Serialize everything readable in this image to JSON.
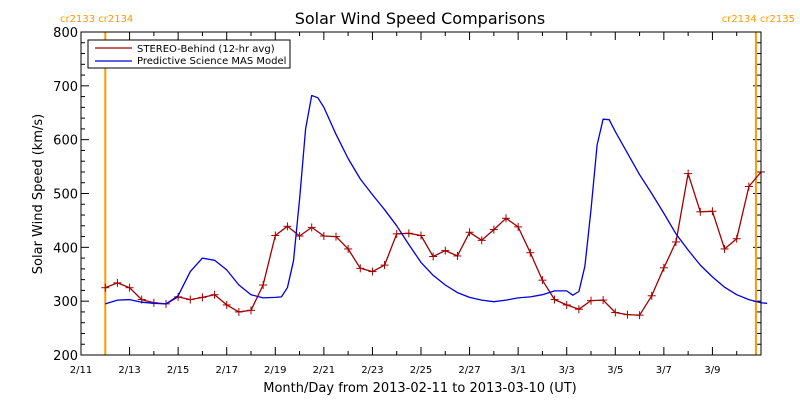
{
  "chart_data": {
    "type": "line",
    "title": "Solar Wind Speed Comparisons",
    "xlabel": "Month/Day from 2013-02-11 to 2013-03-10 (UT)",
    "ylabel": "Solar Wind Speed (km/s)",
    "x_unit": "date",
    "xlim": [
      "2013-02-11",
      "2013-03-10"
    ],
    "ylim": [
      200,
      800
    ],
    "y_ticks": [
      200,
      300,
      400,
      500,
      600,
      700,
      800
    ],
    "x_tick_labels": [
      "2/11",
      "2/13",
      "2/15",
      "2/17",
      "2/19",
      "2/21",
      "2/23",
      "2/25",
      "2/27",
      "3/1",
      "3/3",
      "3/5",
      "3/7",
      "3/9"
    ],
    "legend_position": "top-left",
    "grid": false,
    "carrington_rotation_markers": [
      {
        "x": "2013-02-12T00:00",
        "labels": [
          "cr2133",
          "cr2134"
        ],
        "label_align": "left",
        "color": "#ff9900"
      },
      {
        "x": "2013-03-10T19:00",
        "labels": [
          "cr2134",
          "cr2135"
        ],
        "label_align": "right",
        "color": "#ff9900"
      }
    ],
    "series": [
      {
        "name": "STEREO-Behind (12-hr avg)",
        "color": "#a00000",
        "marker": "plus",
        "points": [
          [
            "2013-02-12T00:00",
            325
          ],
          [
            "2013-02-12T12:00",
            334
          ],
          [
            "2013-02-13T00:00",
            325
          ],
          [
            "2013-02-13T12:00",
            303
          ],
          [
            "2013-02-14T00:00",
            297
          ],
          [
            "2013-02-14T12:00",
            295
          ],
          [
            "2013-02-15T00:00",
            308
          ],
          [
            "2013-02-15T12:00",
            303
          ],
          [
            "2013-02-16T00:00",
            307
          ],
          [
            "2013-02-16T12:00",
            312
          ],
          [
            "2013-02-17T00:00",
            293
          ],
          [
            "2013-02-17T12:00",
            280
          ],
          [
            "2013-02-18T00:00",
            283
          ],
          [
            "2013-02-18T12:00",
            330
          ],
          [
            "2013-02-19T00:00",
            422
          ],
          [
            "2013-02-19T12:00",
            439
          ],
          [
            "2013-02-20T00:00",
            421
          ],
          [
            "2013-02-20T12:00",
            437
          ],
          [
            "2013-02-21T00:00",
            421
          ],
          [
            "2013-02-21T12:00",
            420
          ],
          [
            "2013-02-22T00:00",
            397
          ],
          [
            "2013-02-22T12:00",
            361
          ],
          [
            "2013-02-23T00:00",
            355
          ],
          [
            "2013-02-23T12:00",
            367
          ],
          [
            "2013-02-24T00:00",
            425
          ],
          [
            "2013-02-24T12:00",
            426
          ],
          [
            "2013-02-25T00:00",
            422
          ],
          [
            "2013-02-25T12:00",
            383
          ],
          [
            "2013-02-26T00:00",
            394
          ],
          [
            "2013-02-26T12:00",
            384
          ],
          [
            "2013-02-27T00:00",
            428
          ],
          [
            "2013-02-27T12:00",
            413
          ],
          [
            "2013-02-28T00:00",
            433
          ],
          [
            "2013-02-28T12:00",
            454
          ],
          [
            "2013-03-01T00:00",
            438
          ],
          [
            "2013-03-01T12:00",
            390
          ],
          [
            "2013-03-02T00:00",
            339
          ],
          [
            "2013-03-02T12:00",
            303
          ],
          [
            "2013-03-03T00:00",
            293
          ],
          [
            "2013-03-03T12:00",
            285
          ],
          [
            "2013-03-04T00:00",
            301
          ],
          [
            "2013-03-04T12:00",
            302
          ],
          [
            "2013-03-05T00:00",
            279
          ],
          [
            "2013-03-05T12:00",
            275
          ],
          [
            "2013-03-06T00:00",
            274
          ],
          [
            "2013-03-06T12:00",
            310
          ],
          [
            "2013-03-07T00:00",
            362
          ],
          [
            "2013-03-07T12:00",
            410
          ],
          [
            "2013-03-08T00:00",
            537
          ],
          [
            "2013-03-08T12:00",
            466
          ],
          [
            "2013-03-09T00:00",
            467
          ],
          [
            "2013-03-09T12:00",
            397
          ],
          [
            "2013-03-10T00:00",
            416
          ],
          [
            "2013-03-10T12:00",
            513
          ],
          [
            "2013-03-11T00:00",
            540
          ]
        ]
      },
      {
        "name": "Predictive Science MAS Model",
        "color": "#0000dd",
        "marker": "none",
        "points": [
          [
            "2013-02-12T00:00",
            295
          ],
          [
            "2013-02-12T12:00",
            302
          ],
          [
            "2013-02-13T00:00",
            303
          ],
          [
            "2013-02-13T12:00",
            298
          ],
          [
            "2013-02-14T00:00",
            296
          ],
          [
            "2013-02-14T12:00",
            295
          ],
          [
            "2013-02-15T00:00",
            310
          ],
          [
            "2013-02-15T12:00",
            355
          ],
          [
            "2013-02-16T00:00",
            380
          ],
          [
            "2013-02-16T12:00",
            376
          ],
          [
            "2013-02-17T00:00",
            358
          ],
          [
            "2013-02-17T12:00",
            330
          ],
          [
            "2013-02-18T00:00",
            312
          ],
          [
            "2013-02-18T12:00",
            306
          ],
          [
            "2013-02-19T00:00",
            307
          ],
          [
            "2013-02-19T06:00",
            308
          ],
          [
            "2013-02-19T12:00",
            325
          ],
          [
            "2013-02-19T18:00",
            375
          ],
          [
            "2013-02-20T00:00",
            490
          ],
          [
            "2013-02-20T06:00",
            620
          ],
          [
            "2013-02-20T12:00",
            682
          ],
          [
            "2013-02-20T18:00",
            678
          ],
          [
            "2013-02-21T00:00",
            660
          ],
          [
            "2013-02-21T12:00",
            610
          ],
          [
            "2013-02-22T00:00",
            565
          ],
          [
            "2013-02-22T12:00",
            527
          ],
          [
            "2013-02-23T00:00",
            498
          ],
          [
            "2013-02-23T12:00",
            470
          ],
          [
            "2013-02-24T00:00",
            440
          ],
          [
            "2013-02-24T12:00",
            405
          ],
          [
            "2013-02-25T00:00",
            372
          ],
          [
            "2013-02-25T12:00",
            348
          ],
          [
            "2013-02-26T00:00",
            330
          ],
          [
            "2013-02-26T12:00",
            316
          ],
          [
            "2013-02-27T00:00",
            307
          ],
          [
            "2013-02-27T12:00",
            302
          ],
          [
            "2013-02-28T00:00",
            299
          ],
          [
            "2013-02-28T12:00",
            302
          ],
          [
            "2013-03-01T00:00",
            306
          ],
          [
            "2013-03-01T12:00",
            308
          ],
          [
            "2013-03-02T00:00",
            312
          ],
          [
            "2013-03-02T12:00",
            319
          ],
          [
            "2013-03-03T00:00",
            319
          ],
          [
            "2013-03-03T06:00",
            311
          ],
          [
            "2013-03-03T12:00",
            318
          ],
          [
            "2013-03-03T18:00",
            365
          ],
          [
            "2013-03-04T00:00",
            470
          ],
          [
            "2013-03-04T06:00",
            590
          ],
          [
            "2013-03-04T12:00",
            638
          ],
          [
            "2013-03-04T18:00",
            637
          ],
          [
            "2013-03-05T00:00",
            615
          ],
          [
            "2013-03-05T12:00",
            575
          ],
          [
            "2013-03-06T00:00",
            535
          ],
          [
            "2013-03-06T12:00",
            500
          ],
          [
            "2013-03-07T00:00",
            463
          ],
          [
            "2013-03-07T12:00",
            425
          ],
          [
            "2013-03-08T00:00",
            395
          ],
          [
            "2013-03-08T12:00",
            367
          ],
          [
            "2013-03-09T00:00",
            345
          ],
          [
            "2013-03-09T12:00",
            326
          ],
          [
            "2013-03-10T00:00",
            312
          ],
          [
            "2013-03-10T12:00",
            303
          ],
          [
            "2013-03-11T00:00",
            297
          ],
          [
            "2013-03-11T06:00",
            296
          ]
        ]
      }
    ]
  }
}
